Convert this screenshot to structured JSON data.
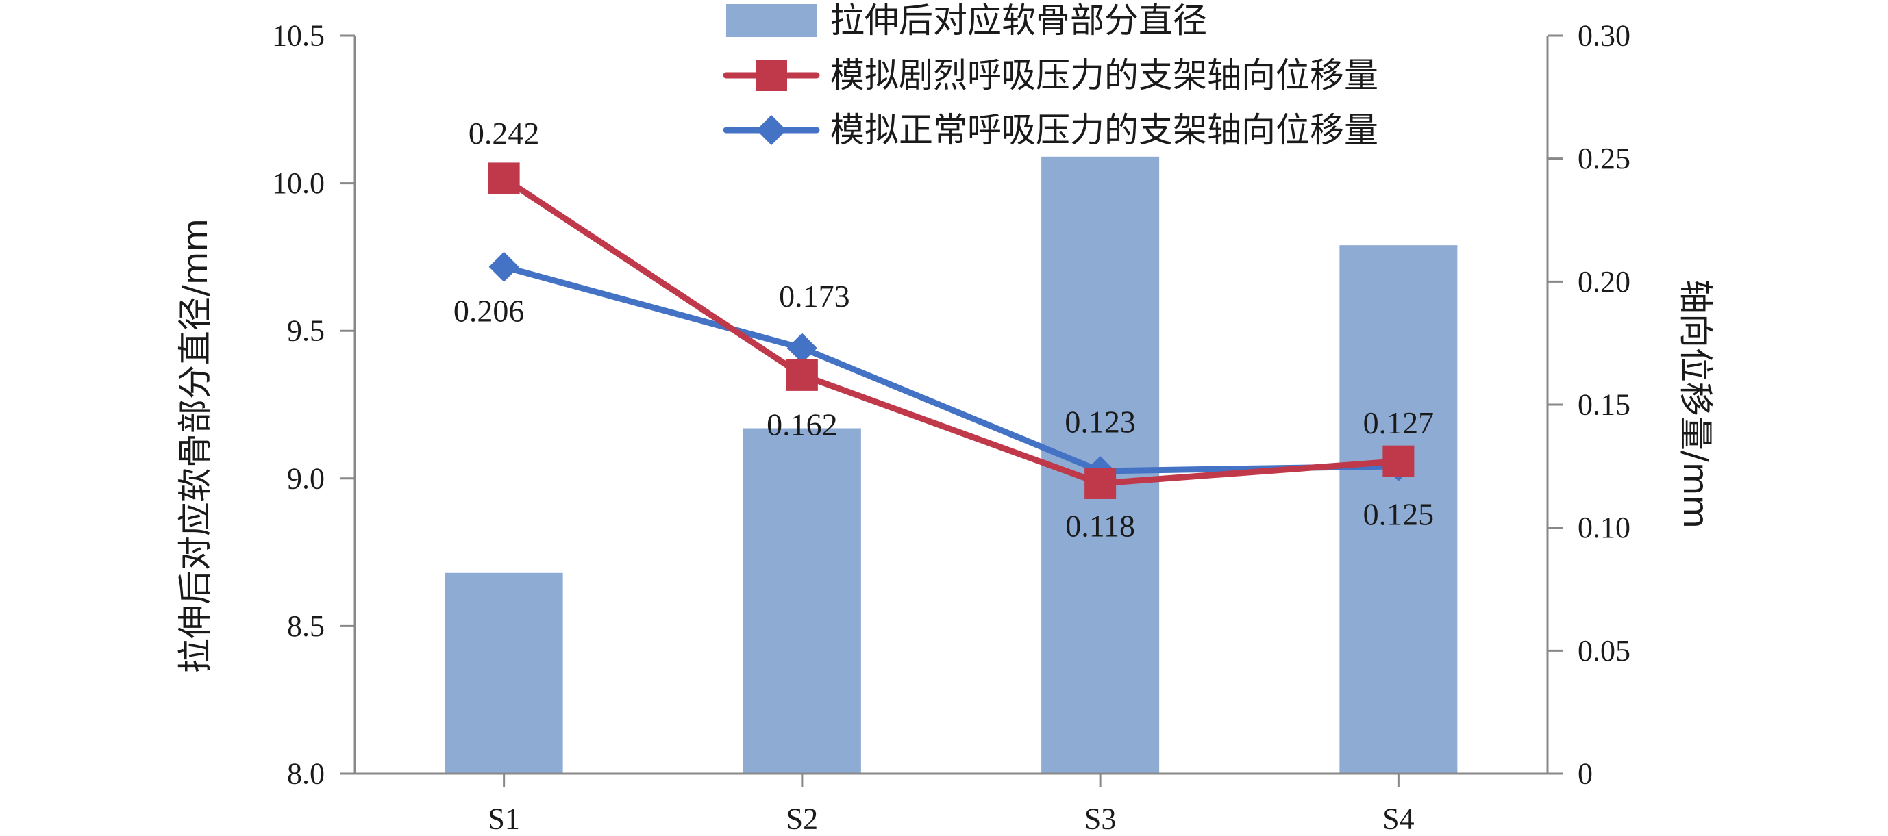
{
  "chart_data": {
    "type": "bar",
    "categories": [
      "S1",
      "S2",
      "S3",
      "S4"
    ],
    "bar_series": {
      "name": "拉伸后对应软骨部分直径",
      "color": "#8eabd3",
      "values": [
        8.68,
        9.17,
        10.09,
        9.79
      ]
    },
    "line_series": [
      {
        "name": "模拟剧烈呼吸压力的支架轴向位移量",
        "color": "#c0394b",
        "marker": "square",
        "values": [
          0.242,
          0.162,
          0.118,
          0.127
        ],
        "labels": [
          "0.242",
          "0.162",
          "0.118",
          "0.127"
        ]
      },
      {
        "name": "模拟正常呼吸压力的支架轴向位移量",
        "color": "#4472c4",
        "marker": "diamond",
        "values": [
          0.206,
          0.173,
          0.123,
          0.125
        ],
        "labels": [
          "0.206",
          "0.173",
          "0.123",
          "0.125"
        ]
      }
    ],
    "y_left": {
      "label": "拉伸后对应软骨部分直径/mm",
      "range": [
        8.0,
        10.5
      ],
      "ticks": [
        "8.0",
        "8.5",
        "9.0",
        "9.5",
        "10.0",
        "10.5"
      ]
    },
    "y_right": {
      "label": "轴向位移量/mm",
      "range": [
        0,
        0.3
      ],
      "ticks": [
        "0",
        "0.05",
        "0.10",
        "0.15",
        "0.20",
        "0.25",
        "0.30"
      ]
    },
    "legend_position": "top-right",
    "grid": false
  }
}
